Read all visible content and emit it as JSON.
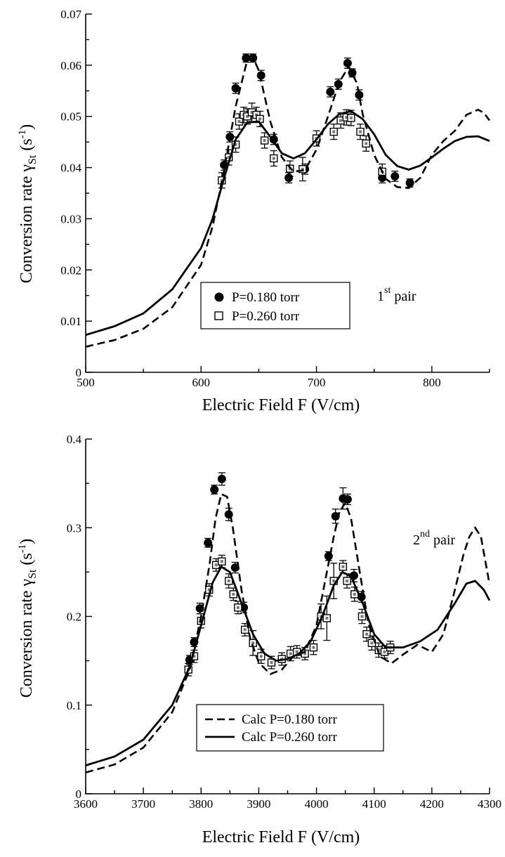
{
  "chart_data": [
    {
      "type": "scatter",
      "xlabel": "Electric Field F (V/cm)",
      "ylabel_main": "Conversion  rate γ",
      "ylabel_sub": "St",
      "ylabel_unit": "(s",
      "ylabel_exp": "-1",
      "ylabel_close": ")",
      "xlim": [
        500,
        850
      ],
      "ylim": [
        0,
        0.07
      ],
      "xticks": [
        500,
        600,
        700,
        800
      ],
      "xtick_labels": [
        "500",
        "600",
        "700",
        "800"
      ],
      "yticks": [
        0,
        0.01,
        0.02,
        0.03,
        0.04,
        0.05,
        0.06,
        0.07
      ],
      "ytick_labels": [
        "0",
        "0.01",
        "0.02",
        "0.03",
        "0.04",
        "0.05",
        "0.06",
        "0.07"
      ],
      "annotation": {
        "main": "1",
        "sup": "st",
        "rest": " pair"
      },
      "legend": [
        {
          "label": "P=0.180 torr",
          "marker": "filled-circle"
        },
        {
          "label": "P=0.260 torr",
          "marker": "open-square"
        }
      ],
      "legend_position": "bottom-center",
      "series": [
        {
          "name": "P=0.180 torr",
          "kind": "points",
          "x": [
            620,
            625,
            630,
            639,
            645,
            652,
            663,
            676,
            690,
            712,
            719,
            727,
            731,
            737,
            757,
            768,
            781
          ],
          "y": [
            0.0405,
            0.046,
            0.0555,
            0.0614,
            0.0614,
            0.058,
            0.0455,
            0.038,
            0.0397,
            0.0548,
            0.0563,
            0.0604,
            0.0585,
            0.0542,
            0.038,
            0.0383,
            0.037
          ],
          "err": [
            0.001,
            0.001,
            0.001,
            0.0008,
            0.0008,
            0.001,
            0.001,
            0.001,
            0.001,
            0.001,
            0.001,
            0.001,
            0.0008,
            0.001,
            0.001,
            0.001,
            0.0008
          ]
        },
        {
          "name": "P=0.260 torr",
          "kind": "points",
          "x": [
            618,
            624,
            630,
            633,
            637,
            640,
            644,
            648,
            651,
            655,
            663,
            677,
            688,
            700,
            715,
            721,
            726,
            730,
            738,
            743,
            757
          ],
          "y": [
            0.0375,
            0.042,
            0.0445,
            0.049,
            0.0503,
            0.05,
            0.0508,
            0.0503,
            0.0495,
            0.0453,
            0.0418,
            0.0398,
            0.0397,
            0.0457,
            0.047,
            0.0492,
            0.0498,
            0.0497,
            0.047,
            0.0447,
            0.0392
          ],
          "err": [
            0.0015,
            0.0015,
            0.0015,
            0.0015,
            0.0015,
            0.0015,
            0.0018,
            0.0015,
            0.0015,
            0.0015,
            0.0015,
            0.0015,
            0.0023,
            0.0015,
            0.0015,
            0.0015,
            0.0015,
            0.0015,
            0.0015,
            0.0015,
            0.0015
          ]
        },
        {
          "name": "",
          "kind": "dashed-curve",
          "x": [
            500,
            525,
            550,
            575,
            600,
            610,
            620,
            630,
            640,
            645,
            650,
            660,
            670,
            680,
            690,
            700,
            710,
            720,
            728,
            735,
            740,
            750,
            760,
            770,
            780,
            790,
            800,
            810,
            820,
            830,
            840,
            845,
            850
          ],
          "y": [
            0.005,
            0.0063,
            0.0085,
            0.0127,
            0.021,
            0.0285,
            0.0395,
            0.052,
            0.061,
            0.0615,
            0.059,
            0.049,
            0.042,
            0.0392,
            0.0395,
            0.0435,
            0.05,
            0.0568,
            0.0597,
            0.0565,
            0.0505,
            0.0425,
            0.0378,
            0.0362,
            0.036,
            0.038,
            0.0425,
            0.0452,
            0.0472,
            0.0503,
            0.0513,
            0.0507,
            0.0492
          ]
        },
        {
          "name": "",
          "kind": "solid-curve",
          "x": [
            500,
            525,
            550,
            575,
            600,
            610,
            620,
            630,
            640,
            650,
            660,
            670,
            680,
            690,
            700,
            710,
            720,
            730,
            740,
            750,
            760,
            770,
            780,
            790,
            800,
            810,
            820,
            830,
            840,
            850
          ],
          "y": [
            0.0073,
            0.009,
            0.0115,
            0.0162,
            0.0243,
            0.03,
            0.038,
            0.0455,
            0.0488,
            0.049,
            0.046,
            0.0428,
            0.0418,
            0.0428,
            0.0455,
            0.0485,
            0.0505,
            0.051,
            0.0495,
            0.0465,
            0.0425,
            0.0403,
            0.0396,
            0.0404,
            0.042,
            0.0437,
            0.0452,
            0.046,
            0.0461,
            0.0452
          ]
        }
      ]
    },
    {
      "type": "scatter",
      "xlabel": "Electric Field F (V/cm)",
      "ylabel_main": "Conversion  rate γ",
      "ylabel_sub": "St",
      "ylabel_unit": "(s",
      "ylabel_exp": "-1",
      "ylabel_close": ")",
      "xlim": [
        3600,
        4300
      ],
      "ylim": [
        0,
        0.4
      ],
      "xticks": [
        3600,
        3700,
        3800,
        3900,
        4000,
        4100,
        4200,
        4300
      ],
      "xtick_labels": [
        "3600",
        "3700",
        "3800",
        "3900",
        "4000",
        "4100",
        "4200",
        "4300"
      ],
      "yticks": [
        0,
        0.1,
        0.2,
        0.3,
        0.4
      ],
      "ytick_labels": [
        "0",
        "0.1",
        "0.2",
        "0.3",
        "0.4"
      ],
      "annotation": {
        "main": "2",
        "sup": "nd",
        "rest": " pair"
      },
      "legend": [
        {
          "label": "Calc P=0.180 torr",
          "line": "dashed"
        },
        {
          "label": "Calc P=0.260 torr",
          "line": "solid"
        }
      ],
      "legend_position": "bottom-center",
      "series": [
        {
          "name": "",
          "kind": "points",
          "x": [
            3780,
            3788,
            3798,
            3812,
            3823,
            3836,
            3848,
            3859,
            3874,
            4021,
            4033,
            4046,
            4054,
            4065,
            4078
          ],
          "y": [
            0.151,
            0.171,
            0.209,
            0.283,
            0.343,
            0.355,
            0.315,
            0.255,
            0.21,
            0.268,
            0.313,
            0.333,
            0.332,
            0.246,
            0.222
          ],
          "err": [
            0.005,
            0.005,
            0.006,
            0.005,
            0.005,
            0.007,
            0.007,
            0.006,
            0.006,
            0.005,
            0.008,
            0.012,
            0.006,
            0.007,
            0.006
          ]
        },
        {
          "name": "",
          "kind": "squares",
          "x": [
            3778,
            3788,
            3800,
            3814,
            3826,
            3836,
            3848,
            3856,
            3864,
            3876,
            3890,
            3904,
            3922,
            3940,
            3955,
            3966,
            3980,
            3995,
            4008,
            4018,
            4030,
            4046,
            4053,
            4066,
            4079,
            4087,
            4096,
            4108,
            4118,
            4128
          ],
          "y": [
            0.14,
            0.155,
            0.195,
            0.23,
            0.258,
            0.262,
            0.24,
            0.225,
            0.21,
            0.185,
            0.17,
            0.155,
            0.148,
            0.152,
            0.158,
            0.16,
            0.158,
            0.165,
            0.2,
            0.198,
            0.24,
            0.256,
            0.24,
            0.225,
            0.2,
            0.18,
            0.17,
            0.162,
            0.16,
            0.165
          ],
          "err": [
            0.007,
            0.007,
            0.008,
            0.007,
            0.007,
            0.007,
            0.008,
            0.007,
            0.007,
            0.007,
            0.014,
            0.008,
            0.007,
            0.007,
            0.008,
            0.007,
            0.007,
            0.008,
            0.014,
            0.025,
            0.02,
            0.007,
            0.008,
            0.008,
            0.008,
            0.008,
            0.008,
            0.008,
            0.007,
            0.007
          ]
        },
        {
          "name": "Calc P=0.180 torr",
          "kind": "dashed-curve",
          "x": [
            3600,
            3650,
            3700,
            3750,
            3780,
            3800,
            3815,
            3825,
            3835,
            3845,
            3855,
            3870,
            3885,
            3900,
            3920,
            3940,
            3960,
            3980,
            4000,
            4015,
            4030,
            4040,
            4050,
            4060,
            4075,
            4090,
            4110,
            4130,
            4150,
            4175,
            4200,
            4220,
            4240,
            4255,
            4265,
            4275,
            4285,
            4300
          ],
          "y": [
            0.024,
            0.033,
            0.052,
            0.092,
            0.14,
            0.2,
            0.26,
            0.31,
            0.338,
            0.335,
            0.3,
            0.23,
            0.175,
            0.148,
            0.135,
            0.14,
            0.155,
            0.16,
            0.19,
            0.24,
            0.29,
            0.318,
            0.328,
            0.31,
            0.25,
            0.192,
            0.155,
            0.147,
            0.157,
            0.168,
            0.16,
            0.18,
            0.23,
            0.27,
            0.29,
            0.3,
            0.29,
            0.236
          ]
        },
        {
          "name": "Calc P=0.260 torr",
          "kind": "solid-curve",
          "x": [
            3600,
            3650,
            3700,
            3750,
            3780,
            3800,
            3820,
            3835,
            3850,
            3870,
            3890,
            3910,
            3930,
            3950,
            3970,
            3990,
            4010,
            4030,
            4045,
            4060,
            4080,
            4100,
            4120,
            4150,
            4180,
            4210,
            4240,
            4260,
            4275,
            4290,
            4300
          ],
          "y": [
            0.032,
            0.042,
            0.061,
            0.1,
            0.143,
            0.19,
            0.238,
            0.256,
            0.25,
            0.215,
            0.18,
            0.158,
            0.15,
            0.152,
            0.158,
            0.172,
            0.2,
            0.235,
            0.25,
            0.245,
            0.215,
            0.18,
            0.165,
            0.165,
            0.172,
            0.185,
            0.215,
            0.237,
            0.24,
            0.23,
            0.218
          ]
        }
      ]
    }
  ]
}
